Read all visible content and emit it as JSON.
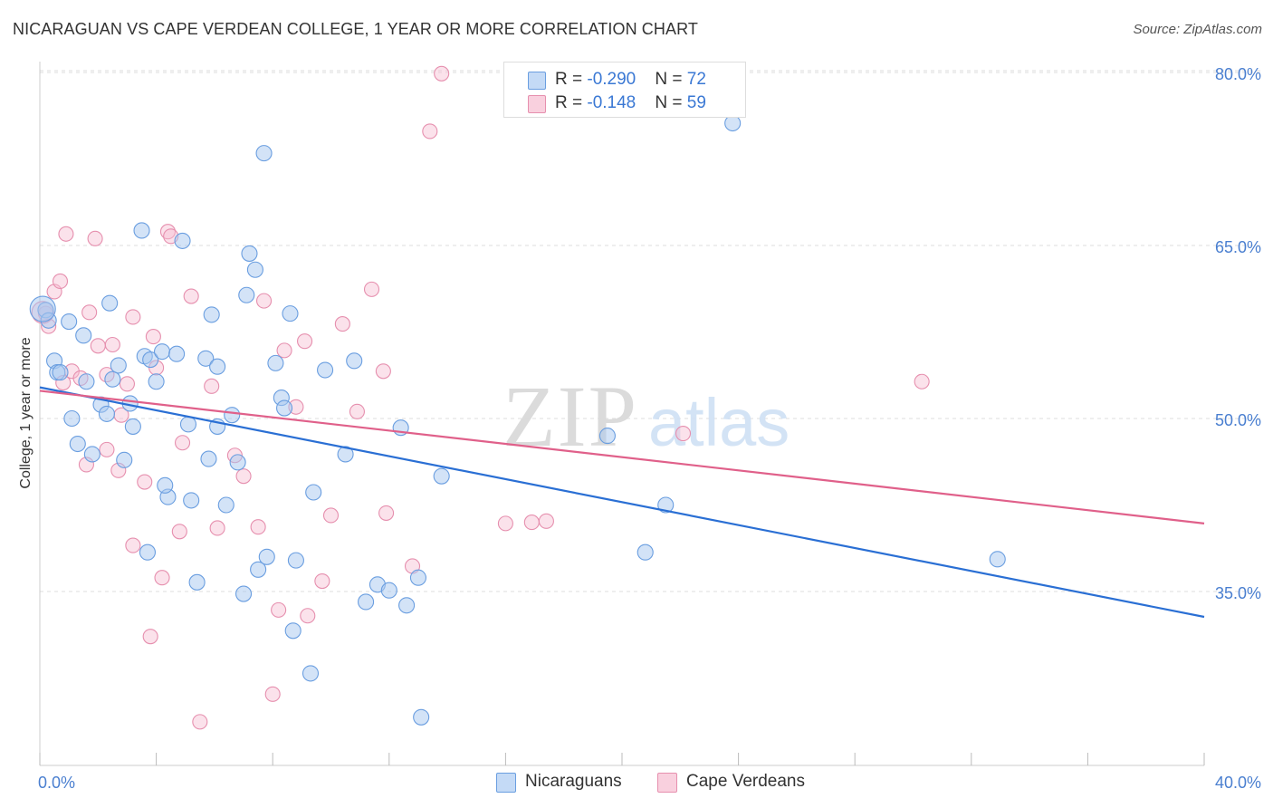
{
  "title": "NICARAGUAN VS CAPE VERDEAN COLLEGE, 1 YEAR OR MORE CORRELATION CHART",
  "source": "Source: ZipAtlas.com",
  "watermark": {
    "zip": "ZIP",
    "atlas": "atlas"
  },
  "colors": {
    "blue_fill": "#a8c8f0",
    "blue_stroke": "#6a9ee0",
    "blue_line": "#2a6fd4",
    "pink_fill": "#f6bfd2",
    "pink_stroke": "#e68fae",
    "pink_line": "#e0608a",
    "tick_text": "#4a7fd0",
    "grid": "#dddddd"
  },
  "legend": {
    "rows": [
      {
        "r_label": "R = ",
        "r_value": "-0.290",
        "n_label": "N = ",
        "n_value": "72"
      },
      {
        "r_label": "R = ",
        "r_value": "-0.148",
        "n_label": "N = ",
        "n_value": "59"
      }
    ]
  },
  "bottom_legend": [
    "Nicaraguans",
    "Cape Verdeans"
  ],
  "chart_data": {
    "type": "scatter",
    "title": "NICARAGUAN VS CAPE VERDEAN COLLEGE, 1 YEAR OR MORE CORRELATION CHART",
    "xlabel": "",
    "ylabel": "College, 1 year or more",
    "xlim": [
      0,
      40
    ],
    "ylim": [
      20,
      83
    ],
    "x_tick_labels": [
      "0.0%",
      "40.0%"
    ],
    "y_ticks": [
      35,
      50,
      65,
      80
    ],
    "y_tick_labels": [
      "35.0%",
      "50.0%",
      "65.0%",
      "80.0%"
    ],
    "grid": true,
    "legend_position": "top-center",
    "series": [
      {
        "name": "Nicaraguans",
        "r": -0.29,
        "n": 72,
        "trend": {
          "x": [
            0,
            40
          ],
          "y": [
            52.7,
            32.8
          ]
        },
        "points": [
          [
            0.2,
            59.4
          ],
          [
            0.3,
            58.5
          ],
          [
            0.5,
            55.0
          ],
          [
            0.6,
            54.0
          ],
          [
            0.7,
            54.0
          ],
          [
            1.0,
            58.4
          ],
          [
            1.1,
            50.0
          ],
          [
            1.3,
            47.8
          ],
          [
            1.5,
            57.2
          ],
          [
            1.8,
            46.9
          ],
          [
            1.6,
            53.2
          ],
          [
            2.1,
            51.2
          ],
          [
            2.3,
            50.4
          ],
          [
            2.4,
            60.0
          ],
          [
            2.5,
            53.4
          ],
          [
            2.7,
            54.6
          ],
          [
            2.9,
            46.4
          ],
          [
            3.1,
            51.3
          ],
          [
            3.2,
            49.3
          ],
          [
            3.5,
            66.3
          ],
          [
            3.6,
            55.4
          ],
          [
            3.8,
            55.1
          ],
          [
            3.7,
            38.4
          ],
          [
            4.0,
            53.2
          ],
          [
            4.2,
            55.8
          ],
          [
            4.4,
            43.2
          ],
          [
            4.3,
            44.2
          ],
          [
            4.7,
            55.6
          ],
          [
            4.9,
            65.4
          ],
          [
            5.1,
            49.5
          ],
          [
            5.2,
            42.9
          ],
          [
            5.4,
            35.8
          ],
          [
            5.7,
            55.2
          ],
          [
            5.8,
            46.5
          ],
          [
            5.9,
            59.0
          ],
          [
            6.1,
            54.5
          ],
          [
            6.1,
            49.3
          ],
          [
            6.4,
            42.5
          ],
          [
            6.6,
            50.3
          ],
          [
            6.8,
            46.2
          ],
          [
            7.0,
            34.8
          ],
          [
            7.1,
            60.7
          ],
          [
            7.2,
            64.3
          ],
          [
            7.4,
            62.9
          ],
          [
            7.5,
            36.9
          ],
          [
            7.7,
            73.0
          ],
          [
            7.8,
            38.0
          ],
          [
            8.1,
            54.8
          ],
          [
            8.3,
            51.8
          ],
          [
            8.4,
            50.9
          ],
          [
            8.6,
            59.1
          ],
          [
            8.7,
            31.6
          ],
          [
            8.8,
            37.7
          ],
          [
            9.3,
            27.9
          ],
          [
            9.4,
            43.6
          ],
          [
            9.8,
            54.2
          ],
          [
            10.5,
            46.9
          ],
          [
            10.8,
            55.0
          ],
          [
            11.2,
            34.1
          ],
          [
            11.6,
            35.6
          ],
          [
            12.0,
            35.1
          ],
          [
            12.6,
            33.8
          ],
          [
            12.4,
            49.2
          ],
          [
            13.0,
            36.2
          ],
          [
            13.1,
            24.1
          ],
          [
            13.8,
            45.0
          ],
          [
            19.5,
            48.5
          ],
          [
            20.8,
            38.4
          ],
          [
            21.5,
            42.5
          ],
          [
            23.8,
            75.6
          ],
          [
            32.9,
            37.8
          ],
          [
            0.1,
            59.5
          ]
        ]
      },
      {
        "name": "Cape Verdeans",
        "r": -0.148,
        "n": 59,
        "trend": {
          "x": [
            0,
            40
          ],
          "y": [
            52.4,
            40.9
          ]
        },
        "points": [
          [
            0.2,
            59.1
          ],
          [
            0.3,
            58.0
          ],
          [
            0.5,
            61.0
          ],
          [
            0.7,
            61.9
          ],
          [
            0.8,
            53.1
          ],
          [
            0.9,
            66.0
          ],
          [
            1.1,
            54.1
          ],
          [
            1.4,
            53.5
          ],
          [
            1.6,
            46.0
          ],
          [
            1.7,
            59.2
          ],
          [
            1.9,
            65.6
          ],
          [
            2.0,
            56.3
          ],
          [
            2.3,
            47.3
          ],
          [
            2.3,
            53.8
          ],
          [
            2.5,
            56.4
          ],
          [
            2.7,
            45.5
          ],
          [
            2.8,
            50.3
          ],
          [
            3.0,
            53.0
          ],
          [
            3.2,
            58.8
          ],
          [
            3.2,
            39.0
          ],
          [
            3.6,
            44.5
          ],
          [
            3.8,
            31.1
          ],
          [
            3.9,
            57.1
          ],
          [
            4.0,
            54.4
          ],
          [
            4.2,
            36.2
          ],
          [
            4.4,
            66.2
          ],
          [
            4.5,
            65.8
          ],
          [
            4.8,
            40.2
          ],
          [
            4.9,
            47.9
          ],
          [
            5.2,
            60.6
          ],
          [
            5.5,
            23.7
          ],
          [
            5.9,
            52.8
          ],
          [
            6.1,
            40.5
          ],
          [
            6.7,
            46.8
          ],
          [
            7.0,
            45.0
          ],
          [
            7.5,
            40.6
          ],
          [
            7.7,
            60.2
          ],
          [
            8.0,
            26.1
          ],
          [
            8.2,
            33.4
          ],
          [
            8.4,
            55.9
          ],
          [
            8.8,
            51.0
          ],
          [
            9.1,
            56.7
          ],
          [
            9.2,
            32.9
          ],
          [
            9.7,
            35.9
          ],
          [
            10.0,
            41.6
          ],
          [
            10.4,
            58.2
          ],
          [
            10.9,
            50.6
          ],
          [
            11.4,
            61.2
          ],
          [
            11.8,
            54.1
          ],
          [
            11.9,
            41.8
          ],
          [
            12.8,
            37.2
          ],
          [
            13.4,
            74.9
          ],
          [
            13.8,
            79.9
          ],
          [
            16.0,
            40.9
          ],
          [
            16.9,
            41.0
          ],
          [
            17.4,
            41.1
          ],
          [
            22.1,
            48.7
          ],
          [
            30.3,
            53.2
          ],
          [
            0.1,
            59.2
          ]
        ]
      }
    ]
  }
}
